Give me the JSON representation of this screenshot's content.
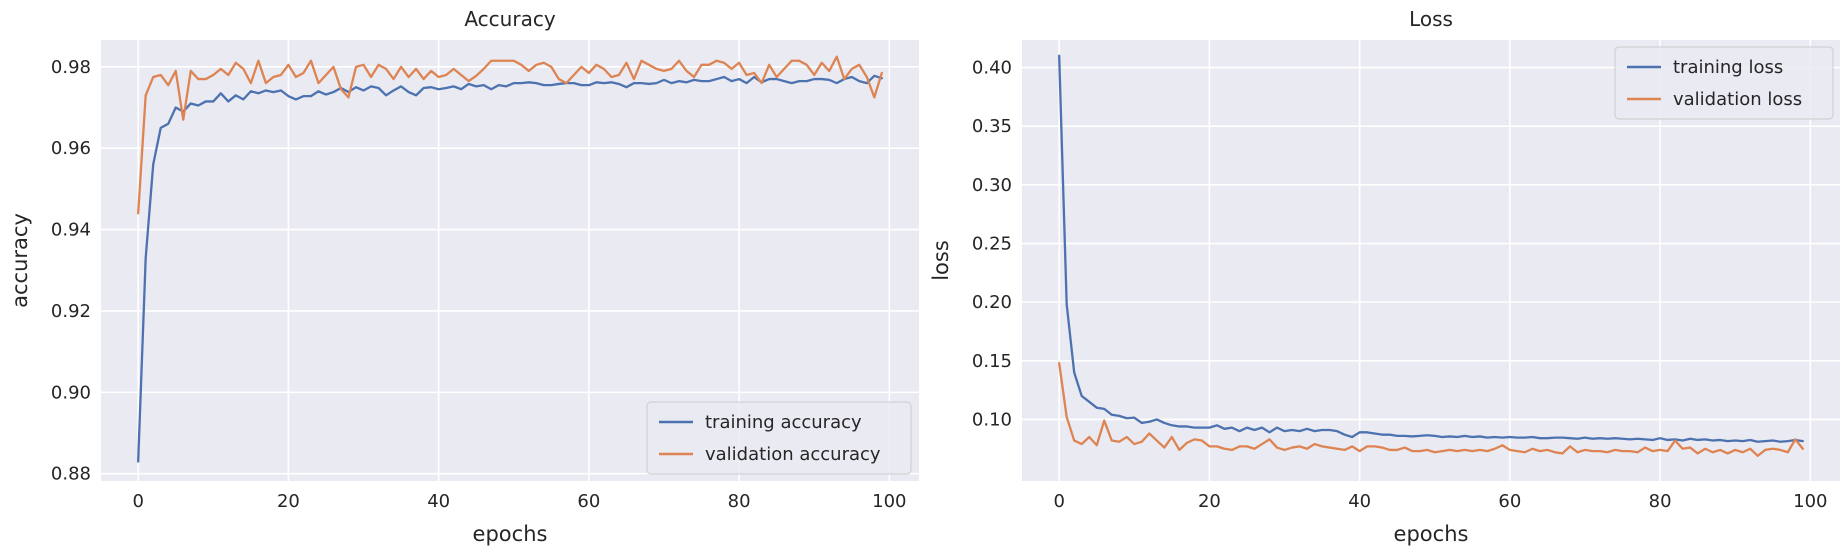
{
  "chart_data": [
    {
      "type": "line",
      "title": "Accuracy",
      "xlabel": "epochs",
      "ylabel": "accuracy",
      "xlim": [
        -4.95,
        103.95
      ],
      "ylim": [
        0.8782,
        0.9866
      ],
      "xticks": [
        0,
        20,
        40,
        60,
        80,
        100
      ],
      "yticks": [
        0.88,
        0.9,
        0.92,
        0.94,
        0.96,
        0.98
      ],
      "ytick_labels": [
        "0.88",
        "0.90",
        "0.92",
        "0.94",
        "0.96",
        "0.98"
      ],
      "grid": true,
      "legend_position": "bottom-right",
      "series": [
        {
          "name": "training accuracy",
          "color": "#4c72b0",
          "x": [
            0,
            1,
            2,
            3,
            4,
            5,
            6,
            7,
            8,
            9,
            10,
            11,
            12,
            13,
            14,
            15,
            16,
            17,
            18,
            19,
            20,
            21,
            22,
            23,
            24,
            25,
            26,
            27,
            28,
            29,
            30,
            31,
            32,
            33,
            34,
            35,
            36,
            37,
            38,
            39,
            40,
            41,
            42,
            43,
            44,
            45,
            46,
            47,
            48,
            49,
            50,
            51,
            52,
            53,
            54,
            55,
            56,
            57,
            58,
            59,
            60,
            61,
            62,
            63,
            64,
            65,
            66,
            67,
            68,
            69,
            70,
            71,
            72,
            73,
            74,
            75,
            76,
            77,
            78,
            79,
            80,
            81,
            82,
            83,
            84,
            85,
            86,
            87,
            88,
            89,
            90,
            91,
            92,
            93,
            94,
            95,
            96,
            97,
            98,
            99
          ],
          "y": [
            0.883,
            0.933,
            0.956,
            0.965,
            0.966,
            0.97,
            0.969,
            0.971,
            0.9705,
            0.9715,
            0.9715,
            0.9735,
            0.9715,
            0.973,
            0.972,
            0.974,
            0.9735,
            0.9742,
            0.9738,
            0.9742,
            0.9728,
            0.972,
            0.9728,
            0.9728,
            0.974,
            0.9732,
            0.9738,
            0.9748,
            0.9738,
            0.975,
            0.9742,
            0.9752,
            0.9748,
            0.973,
            0.9742,
            0.9752,
            0.9738,
            0.973,
            0.9748,
            0.975,
            0.9745,
            0.9748,
            0.9752,
            0.9745,
            0.9758,
            0.9752,
            0.9755,
            0.9745,
            0.9755,
            0.9752,
            0.976,
            0.976,
            0.9762,
            0.976,
            0.9755,
            0.9755,
            0.9758,
            0.976,
            0.976,
            0.9755,
            0.9755,
            0.9762,
            0.976,
            0.9762,
            0.9758,
            0.975,
            0.976,
            0.976,
            0.9758,
            0.976,
            0.9768,
            0.976,
            0.9765,
            0.9762,
            0.9768,
            0.9765,
            0.9765,
            0.977,
            0.9775,
            0.9765,
            0.977,
            0.976,
            0.9775,
            0.9762,
            0.977,
            0.977,
            0.9765,
            0.976,
            0.9765,
            0.9765,
            0.977,
            0.977,
            0.9768,
            0.976,
            0.977,
            0.9775,
            0.9765,
            0.976,
            0.9778,
            0.9772
          ]
        },
        {
          "name": "validation accuracy",
          "color": "#dd8452",
          "x": [
            0,
            1,
            2,
            3,
            4,
            5,
            6,
            7,
            8,
            9,
            10,
            11,
            12,
            13,
            14,
            15,
            16,
            17,
            18,
            19,
            20,
            21,
            22,
            23,
            24,
            25,
            26,
            27,
            28,
            29,
            30,
            31,
            32,
            33,
            34,
            35,
            36,
            37,
            38,
            39,
            40,
            41,
            42,
            43,
            44,
            45,
            46,
            47,
            48,
            49,
            50,
            51,
            52,
            53,
            54,
            55,
            56,
            57,
            58,
            59,
            60,
            61,
            62,
            63,
            64,
            65,
            66,
            67,
            68,
            69,
            70,
            71,
            72,
            73,
            74,
            75,
            76,
            77,
            78,
            79,
            80,
            81,
            82,
            83,
            84,
            85,
            86,
            87,
            88,
            89,
            90,
            91,
            92,
            93,
            94,
            95,
            96,
            97,
            98,
            99
          ],
          "y": [
            0.944,
            0.973,
            0.9775,
            0.978,
            0.9755,
            0.979,
            0.967,
            0.979,
            0.977,
            0.977,
            0.978,
            0.9795,
            0.978,
            0.981,
            0.9795,
            0.976,
            0.9815,
            0.976,
            0.9775,
            0.978,
            0.9805,
            0.9775,
            0.9785,
            0.9815,
            0.976,
            0.978,
            0.98,
            0.9745,
            0.9725,
            0.98,
            0.9805,
            0.9775,
            0.9805,
            0.9795,
            0.977,
            0.98,
            0.9775,
            0.9795,
            0.977,
            0.979,
            0.9775,
            0.978,
            0.9795,
            0.978,
            0.9765,
            0.9778,
            0.9795,
            0.9815,
            0.9815,
            0.9815,
            0.9815,
            0.9805,
            0.979,
            0.9805,
            0.981,
            0.98,
            0.977,
            0.976,
            0.978,
            0.98,
            0.9785,
            0.9805,
            0.9795,
            0.9775,
            0.978,
            0.981,
            0.977,
            0.9815,
            0.9805,
            0.9795,
            0.979,
            0.9795,
            0.9815,
            0.979,
            0.9775,
            0.9805,
            0.9805,
            0.9815,
            0.981,
            0.9795,
            0.981,
            0.978,
            0.9785,
            0.976,
            0.9805,
            0.9775,
            0.9795,
            0.9815,
            0.9815,
            0.9805,
            0.978,
            0.981,
            0.979,
            0.9825,
            0.977,
            0.9795,
            0.9805,
            0.9775,
            0.9725,
            0.9785
          ]
        }
      ]
    },
    {
      "type": "line",
      "title": "Loss",
      "xlabel": "epochs",
      "ylabel": "loss",
      "xlim": [
        -4.95,
        103.95
      ],
      "ylim": [
        0.0475,
        0.4235
      ],
      "xticks": [
        0,
        20,
        40,
        60,
        80,
        100
      ],
      "yticks": [
        0.1,
        0.15,
        0.2,
        0.25,
        0.3,
        0.35,
        0.4
      ],
      "ytick_labels": [
        "0.10",
        "0.15",
        "0.20",
        "0.25",
        "0.30",
        "0.35",
        "0.40"
      ],
      "grid": true,
      "legend_position": "top-right",
      "series": [
        {
          "name": "training loss",
          "color": "#4c72b0",
          "x": [
            0,
            1,
            2,
            3,
            4,
            5,
            6,
            7,
            8,
            9,
            10,
            11,
            12,
            13,
            14,
            15,
            16,
            17,
            18,
            19,
            20,
            21,
            22,
            23,
            24,
            25,
            26,
            27,
            28,
            29,
            30,
            31,
            32,
            33,
            34,
            35,
            36,
            37,
            38,
            39,
            40,
            41,
            42,
            43,
            44,
            45,
            46,
            47,
            48,
            49,
            50,
            51,
            52,
            53,
            54,
            55,
            56,
            57,
            58,
            59,
            60,
            61,
            62,
            63,
            64,
            65,
            66,
            67,
            68,
            69,
            70,
            71,
            72,
            73,
            74,
            75,
            76,
            77,
            78,
            79,
            80,
            81,
            82,
            83,
            84,
            85,
            86,
            87,
            88,
            89,
            90,
            91,
            92,
            93,
            94,
            95,
            96,
            97,
            98,
            99
          ],
          "y": [
            0.41,
            0.198,
            0.14,
            0.12,
            0.115,
            0.11,
            0.109,
            0.104,
            0.103,
            0.101,
            0.1015,
            0.097,
            0.098,
            0.1,
            0.097,
            0.095,
            0.094,
            0.094,
            0.093,
            0.093,
            0.093,
            0.095,
            0.092,
            0.093,
            0.09,
            0.093,
            0.091,
            0.093,
            0.089,
            0.093,
            0.09,
            0.091,
            0.09,
            0.092,
            0.09,
            0.091,
            0.091,
            0.09,
            0.087,
            0.085,
            0.089,
            0.089,
            0.088,
            0.087,
            0.087,
            0.086,
            0.086,
            0.0855,
            0.086,
            0.0865,
            0.086,
            0.085,
            0.0855,
            0.085,
            0.086,
            0.085,
            0.0855,
            0.0845,
            0.085,
            0.0845,
            0.085,
            0.0845,
            0.0845,
            0.085,
            0.084,
            0.084,
            0.0845,
            0.0845,
            0.084,
            0.0835,
            0.0845,
            0.0835,
            0.084,
            0.0835,
            0.084,
            0.0835,
            0.083,
            0.0835,
            0.083,
            0.0825,
            0.084,
            0.0825,
            0.083,
            0.082,
            0.0835,
            0.0825,
            0.083,
            0.082,
            0.0825,
            0.0815,
            0.082,
            0.0815,
            0.0825,
            0.081,
            0.0815,
            0.082,
            0.081,
            0.0815,
            0.0825,
            0.0815
          ]
        },
        {
          "name": "validation loss",
          "color": "#dd8452",
          "x": [
            0,
            1,
            2,
            3,
            4,
            5,
            6,
            7,
            8,
            9,
            10,
            11,
            12,
            13,
            14,
            15,
            16,
            17,
            18,
            19,
            20,
            21,
            22,
            23,
            24,
            25,
            26,
            27,
            28,
            29,
            30,
            31,
            32,
            33,
            34,
            35,
            36,
            37,
            38,
            39,
            40,
            41,
            42,
            43,
            44,
            45,
            46,
            47,
            48,
            49,
            50,
            51,
            52,
            53,
            54,
            55,
            56,
            57,
            58,
            59,
            60,
            61,
            62,
            63,
            64,
            65,
            66,
            67,
            68,
            69,
            70,
            71,
            72,
            73,
            74,
            75,
            76,
            77,
            78,
            79,
            80,
            81,
            82,
            83,
            84,
            85,
            86,
            87,
            88,
            89,
            90,
            91,
            92,
            93,
            94,
            95,
            96,
            97,
            98,
            99
          ],
          "y": [
            0.148,
            0.102,
            0.082,
            0.079,
            0.085,
            0.078,
            0.099,
            0.082,
            0.081,
            0.085,
            0.079,
            0.081,
            0.088,
            0.082,
            0.076,
            0.085,
            0.074,
            0.08,
            0.083,
            0.082,
            0.077,
            0.077,
            0.075,
            0.074,
            0.077,
            0.077,
            0.075,
            0.079,
            0.083,
            0.076,
            0.074,
            0.076,
            0.077,
            0.075,
            0.079,
            0.077,
            0.076,
            0.075,
            0.074,
            0.077,
            0.073,
            0.077,
            0.077,
            0.076,
            0.074,
            0.074,
            0.076,
            0.073,
            0.073,
            0.074,
            0.072,
            0.073,
            0.074,
            0.073,
            0.074,
            0.073,
            0.074,
            0.073,
            0.075,
            0.078,
            0.074,
            0.073,
            0.072,
            0.075,
            0.073,
            0.074,
            0.072,
            0.071,
            0.077,
            0.072,
            0.074,
            0.073,
            0.073,
            0.072,
            0.074,
            0.073,
            0.073,
            0.072,
            0.076,
            0.073,
            0.074,
            0.073,
            0.082,
            0.075,
            0.076,
            0.071,
            0.075,
            0.072,
            0.074,
            0.071,
            0.074,
            0.072,
            0.075,
            0.069,
            0.074,
            0.075,
            0.074,
            0.072,
            0.083,
            0.075
          ]
        }
      ]
    }
  ]
}
